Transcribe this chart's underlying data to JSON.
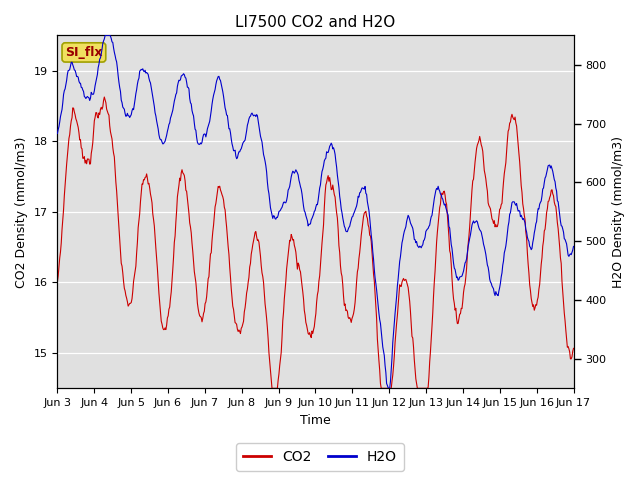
{
  "title": "LI7500 CO2 and H2O",
  "xlabel": "Time",
  "ylabel_left": "CO2 Density (mmol/m3)",
  "ylabel_right": "H2O Density (mmol/m3)",
  "ylim_left": [
    14.5,
    19.5
  ],
  "ylim_right": [
    250,
    850
  ],
  "bg_color": "#e0e0e0",
  "annotation_text": "SI_flx",
  "annotation_bg": "#f0e060",
  "annotation_fg": "#990000",
  "co2_color": "#cc0000",
  "h2o_color": "#0000cc",
  "legend_co2": "CO2",
  "legend_h2o": "H2O",
  "xtick_labels": [
    "Jun 3",
    "Jun 4",
    "Jun 5",
    "Jun 6",
    "Jun 7",
    "Jun 8",
    "Jun 9",
    "Jun 10",
    "Jun 11",
    "Jun 12",
    "Jun 13",
    "Jun 14",
    "Jun 15",
    "Jun 16",
    "Jun 17"
  ],
  "title_fontsize": 11,
  "label_fontsize": 9,
  "tick_fontsize": 8
}
